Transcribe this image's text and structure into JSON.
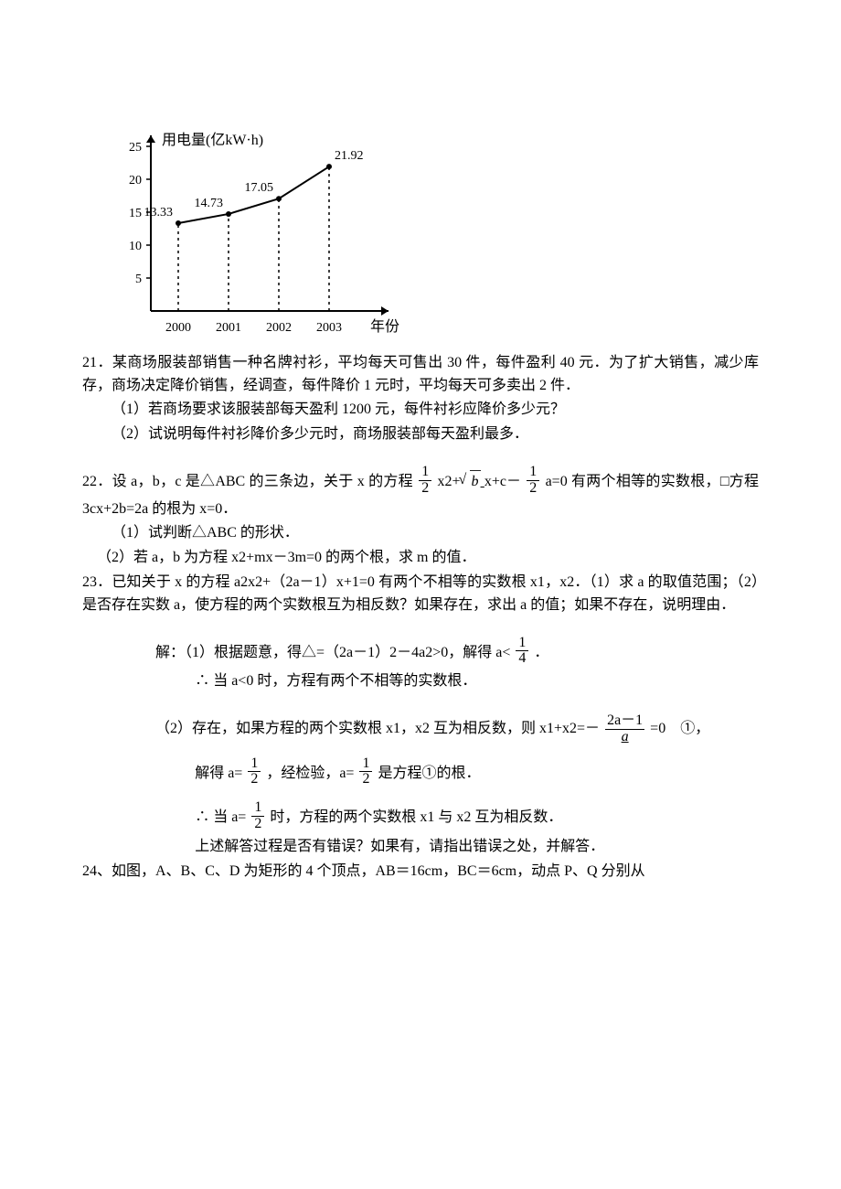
{
  "chart": {
    "type": "line",
    "y_title": "用电量(亿kW·h)",
    "x_title": "年份",
    "categories": [
      "2000",
      "2001",
      "2002",
      "2003"
    ],
    "values": [
      13.33,
      14.73,
      17.05,
      21.92
    ],
    "value_labels": [
      "13.33",
      "14.73",
      "17.05",
      "21.92"
    ],
    "y_ticks": [
      5,
      10,
      15,
      20,
      25
    ],
    "y_tick_labels": [
      "5",
      "10",
      "15",
      "20",
      "25"
    ],
    "xlim": [
      2000,
      2003
    ],
    "ylim": [
      0,
      25
    ],
    "axis_color": "#000000",
    "line_color": "#000000",
    "marker_color": "#000000",
    "drop_line_dash": "3,4",
    "background_color": "#ffffff",
    "label_fontsize": 14,
    "axis_title_fontsize": 16,
    "marker_radius": 3,
    "line_width": 2
  },
  "q21": {
    "head": "21．某商场服装部销售一种名牌衬衫，平均每天可售出 30 件，每件盈利 40 元．为了扩大销售，减少库存，商场决定降价销售，经调查，每件降价 1 元时，平均每天可多卖出 2 件．",
    "p1": "（1）若商场要求该服装部每天盈利 1200 元，每件衬衫应降价多少元？",
    "p2": "（2）试说明每件衬衫降价多少元时，商场服装部每天盈利最多．"
  },
  "q22": {
    "head_a": "22．设 a，b，c 是△ABC 的三条边，关于 x 的方程",
    "head_b": "x2+",
    "sqrt_b": "b",
    "head_c": "x+c－",
    "head_d": "a=0 有两个相等的实数根，□方程 3cx+2b=2a 的根为 x=0．",
    "p1": "（1）试判断△ABC 的形状．",
    "p2": "（2）若 a，b 为方程 x2+mx－3m=0 的两个根，求 m 的值．",
    "frac1_num": "1",
    "frac1_den": "2",
    "frac2_num": "1",
    "frac2_den": "2"
  },
  "q23": {
    "head": "23．已知关于 x 的方程 a2x2+（2a－1）x+1=0 有两个不相等的实数根 x1，x2．（1）求 a 的取值范围；（2）是否存在实数 a，使方程的两个实数根互为相反数？如果存在，求出 a 的值；如果不存在，说明理由．",
    "sol1_a": "解：（1）根据题意，得△=（2a－1）2－4a2>0，解得 a<",
    "sol1_b": "．",
    "sol1_frac_num": "1",
    "sol1_frac_den": "4",
    "sol1c": "∴ 当 a<0 时，方程有两个不相等的实数根．",
    "sol2_a": "（2）存在，如果方程的两个实数根 x1，x2 互为相反数，则 x1+x2=－",
    "sol2_frac_num": "2a－1",
    "sol2_frac_den": "a",
    "sol2_b": "=0　①，",
    "sol3_a": "解得 a=",
    "sol3_b": "，经检验，a=",
    "sol3_c": "是方程①的根．",
    "sol3_frac_num": "1",
    "sol3_frac_den": "2",
    "sol4_a": "∴ 当 a=",
    "sol4_b": "时，方程的两个实数根 x1 与 x2 互为相反数．",
    "sol5": "上述解答过程是否有错误？如果有，请指出错误之处，并解答．"
  },
  "q24": {
    "head": "24、如图，A、B、C、D 为矩形的 4 个顶点，AB＝16cm，BC＝6cm，动点 P、Q 分别从"
  }
}
